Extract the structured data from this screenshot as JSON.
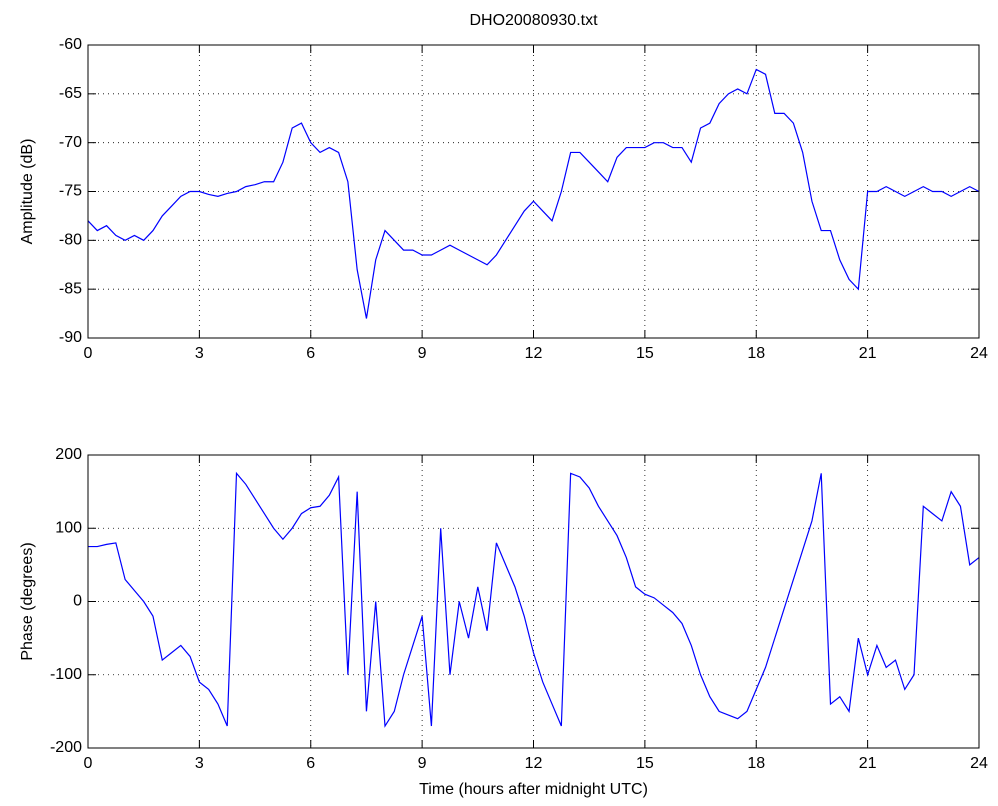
{
  "chart_data": [
    {
      "type": "line",
      "title": "DHO20080930.txt",
      "ylabel": "Amplitude (dB)",
      "color": "#0000ff",
      "grid": true,
      "xlim": [
        0,
        24
      ],
      "xticks": [
        0,
        3,
        6,
        9,
        12,
        15,
        18,
        21,
        24
      ],
      "ylim": [
        -90,
        -60
      ],
      "yticks": [
        -90,
        -85,
        -80,
        -75,
        -70,
        -65,
        -60
      ],
      "x": [
        0,
        0.25,
        0.5,
        0.75,
        1,
        1.25,
        1.5,
        1.75,
        2,
        2.25,
        2.5,
        2.75,
        3,
        3.25,
        3.5,
        3.75,
        4,
        4.25,
        4.5,
        4.75,
        5,
        5.25,
        5.5,
        5.75,
        6,
        6.25,
        6.5,
        6.75,
        7,
        7.25,
        7.5,
        7.75,
        8,
        8.25,
        8.5,
        8.75,
        9,
        9.25,
        9.5,
        9.75,
        10,
        10.25,
        10.5,
        10.75,
        11,
        11.25,
        11.5,
        11.75,
        12,
        12.25,
        12.5,
        12.75,
        13,
        13.25,
        13.5,
        13.75,
        14,
        14.25,
        14.5,
        14.75,
        15,
        15.25,
        15.5,
        15.75,
        16,
        16.25,
        16.5,
        16.75,
        17,
        17.25,
        17.5,
        17.75,
        18,
        18.25,
        18.5,
        18.75,
        19,
        19.25,
        19.5,
        19.75,
        20,
        20.25,
        20.5,
        20.75,
        21,
        21.25,
        21.5,
        21.75,
        22,
        22.25,
        22.5,
        22.75,
        23,
        23.25,
        23.5,
        23.75,
        24
      ],
      "values": [
        -78,
        -79,
        -78.5,
        -79.5,
        -80,
        -79.5,
        -80,
        -79,
        -77.5,
        -76.5,
        -75.5,
        -75,
        -75,
        -75.3,
        -75.5,
        -75.2,
        -75,
        -74.5,
        -74.3,
        -74,
        -74,
        -72,
        -68.5,
        -68,
        -70,
        -71,
        -70.5,
        -71,
        -74,
        -83,
        -88,
        -82,
        -79,
        -80,
        -81,
        -81,
        -81.5,
        -81.5,
        -81,
        -80.5,
        -81,
        -81.5,
        -82,
        -82.5,
        -81.5,
        -80,
        -78.5,
        -77,
        -76,
        -77,
        -78,
        -75,
        -71,
        -71,
        -72,
        -73,
        -74,
        -71.5,
        -70.5,
        -70.5,
        -70.5,
        -70,
        -70,
        -70.5,
        -70.5,
        -72,
        -68.5,
        -68,
        -66,
        -65,
        -64.5,
        -65,
        -62.5,
        -63,
        -67,
        -67,
        -68,
        -71,
        -76,
        -79,
        -79,
        -82,
        -84,
        -85,
        -75,
        -75,
        -74.5,
        -75,
        -75.5,
        -75,
        -74.5,
        -75,
        -75,
        -75.5,
        -75,
        -74.5,
        -75
      ]
    },
    {
      "type": "line",
      "xlabel": "Time (hours after midnight UTC)",
      "ylabel": "Phase (degrees)",
      "color": "#0000ff",
      "grid": true,
      "xlim": [
        0,
        24
      ],
      "xticks": [
        0,
        3,
        6,
        9,
        12,
        15,
        18,
        21,
        24
      ],
      "ylim": [
        -200,
        200
      ],
      "yticks": [
        -200,
        -100,
        0,
        100,
        200
      ],
      "x": [
        0,
        0.25,
        0.5,
        0.75,
        1,
        1.25,
        1.5,
        1.75,
        2,
        2.25,
        2.5,
        2.75,
        3,
        3.25,
        3.5,
        3.75,
        4,
        4.25,
        4.5,
        4.75,
        5,
        5.25,
        5.5,
        5.75,
        6,
        6.25,
        6.5,
        6.75,
        7,
        7.25,
        7.5,
        7.75,
        8,
        8.25,
        8.5,
        8.75,
        9,
        9.25,
        9.5,
        9.75,
        10,
        10.25,
        10.5,
        10.75,
        11,
        11.25,
        11.5,
        11.75,
        12,
        12.25,
        12.5,
        12.75,
        13,
        13.25,
        13.5,
        13.75,
        14,
        14.25,
        14.5,
        14.75,
        15,
        15.25,
        15.5,
        15.75,
        16,
        16.25,
        16.5,
        16.75,
        17,
        17.25,
        17.5,
        17.75,
        18,
        18.25,
        18.5,
        18.75,
        19,
        19.25,
        19.5,
        19.75,
        20,
        20.25,
        20.5,
        20.75,
        21,
        21.25,
        21.5,
        21.75,
        22,
        22.25,
        22.5,
        22.75,
        23,
        23.25,
        23.5,
        23.75,
        24
      ],
      "values": [
        75,
        75,
        78,
        80,
        30,
        15,
        0,
        -20,
        -80,
        -70,
        -60,
        -75,
        -110,
        -120,
        -140,
        -170,
        175,
        160,
        140,
        120,
        100,
        85,
        100,
        120,
        128,
        130,
        145,
        170,
        -100,
        150,
        -150,
        0,
        -170,
        -150,
        -100,
        -60,
        -20,
        -170,
        100,
        -100,
        0,
        -50,
        20,
        -40,
        80,
        50,
        20,
        -20,
        -70,
        -110,
        -140,
        -170,
        175,
        170,
        155,
        130,
        110,
        90,
        60,
        20,
        10,
        5,
        -5,
        -15,
        -30,
        -60,
        -100,
        -130,
        -150,
        -155,
        -160,
        -150,
        -120,
        -90,
        -50,
        -10,
        30,
        70,
        110,
        175,
        -140,
        -130,
        -150,
        -50,
        -100,
        -60,
        -90,
        -80,
        -120,
        -100,
        130,
        120,
        110,
        150,
        130,
        50,
        60
      ]
    }
  ]
}
